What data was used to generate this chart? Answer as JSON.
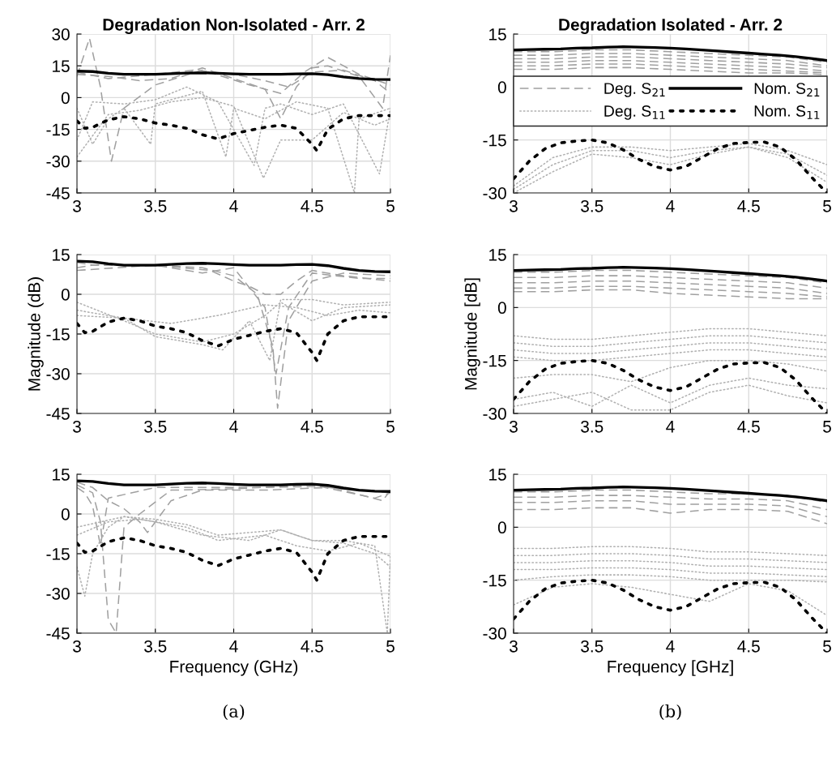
{
  "chart_data": [
    {
      "type": "line",
      "title": "Degradation Non-Isolated - Arr. 2",
      "xlim": [
        3,
        5
      ],
      "xticks": [
        3,
        3.5,
        4,
        4.5,
        5
      ],
      "ylim": [
        -45,
        30
      ],
      "yticks": [
        -45,
        -30,
        -15,
        0,
        15,
        30
      ],
      "grid": true,
      "x": [
        3,
        3.1,
        3.2,
        3.3,
        3.4,
        3.5,
        3.6,
        3.7,
        3.8,
        3.9,
        4.0,
        4.1,
        4.2,
        4.3,
        4.4,
        4.5,
        4.6,
        4.7,
        4.8,
        4.9,
        5
      ],
      "series": [
        {
          "color": "#a0a0a0",
          "line_style": "dashed",
          "x": [
            3,
            3.2,
            3.4,
            3.6,
            3.8,
            4.0,
            4.2,
            4.3,
            4.4,
            4.5,
            4.6,
            4.8,
            4.95,
            5
          ],
          "values": [
            11,
            10,
            8,
            9,
            14,
            9,
            4,
            -10,
            5,
            14,
            15,
            10,
            -5,
            20
          ]
        },
        {
          "color": "#a0a0a0",
          "line_style": "dashed",
          "x": [
            3,
            3.08,
            3.15,
            3.22,
            3.3,
            3.5,
            3.8,
            4.1,
            4.3,
            4.45,
            4.6,
            4.8,
            5
          ],
          "values": [
            10,
            28,
            5,
            -30,
            -5,
            6,
            13,
            6,
            2,
            12,
            19,
            11,
            6
          ]
        },
        {
          "color": "#a0a0a0",
          "line_style": "dashed",
          "x": [
            3,
            3.2,
            3.5,
            3.75,
            4,
            4.2,
            4.35,
            4.5,
            4.7,
            4.9,
            5
          ],
          "values": [
            12,
            9,
            11,
            13,
            11,
            8,
            5,
            12,
            13,
            8,
            2
          ]
        },
        {
          "color": "#b0b0b0",
          "line_style": "dotted",
          "x": [
            3,
            3.1,
            3.2,
            3.3,
            3.47,
            3.5,
            3.8,
            3.95,
            4,
            4.2,
            4.4,
            4.6,
            4.77,
            4.8,
            5
          ],
          "values": [
            -5,
            -22,
            -10,
            -5,
            -22,
            -3,
            3,
            -28,
            -5,
            -10,
            -2,
            -5,
            -45,
            -10,
            -5
          ]
        },
        {
          "color": "#b0b0b0",
          "line_style": "dotted",
          "x": [
            3,
            3.1,
            3.3,
            3.5,
            3.7,
            3.9,
            4.13,
            4.2,
            4.3,
            4.5,
            4.7,
            4.93,
            5
          ],
          "values": [
            -20,
            -2,
            -3,
            -1,
            5,
            -2,
            -32,
            -5,
            -3,
            -8,
            -3,
            -36,
            -5
          ]
        },
        {
          "color": "#b0b0b0",
          "line_style": "dotted",
          "x": [
            3,
            3.2,
            3.4,
            3.6,
            3.8,
            4.0,
            4.19,
            4.3,
            4.5,
            4.7,
            4.9,
            5
          ],
          "values": [
            -28,
            -8,
            -6,
            -2,
            0,
            -4,
            -38,
            -20,
            -20,
            -7,
            -13,
            -10
          ]
        },
        {
          "color": "#000000",
          "line_style": "solid",
          "values": [
            12.5,
            12.3,
            11.5,
            11,
            11,
            11,
            11.3,
            11.6,
            11.7,
            11.5,
            11.2,
            11,
            11,
            11,
            11.2,
            11.3,
            10.8,
            9.8,
            9,
            8.6,
            8.5
          ]
        },
        {
          "color": "#000000",
          "line_style": "dotted",
          "x": [
            3,
            3.05,
            3.1,
            3.2,
            3.3,
            3.4,
            3.5,
            3.6,
            3.7,
            3.8,
            3.9,
            4.0,
            4.1,
            4.2,
            4.3,
            4.4,
            4.5,
            4.53,
            4.6,
            4.7,
            4.8,
            4.9,
            5
          ],
          "values": [
            -11,
            -14.5,
            -14,
            -10.5,
            -9,
            -10,
            -12,
            -13,
            -14.5,
            -17.5,
            -19.5,
            -17,
            -15.5,
            -14,
            -13,
            -14.5,
            -22,
            -25,
            -15,
            -10,
            -8.5,
            -8.5,
            -8.5
          ]
        }
      ]
    },
    {
      "type": "line",
      "title": "Degradation Isolated - Arr. 2",
      "xlim": [
        3,
        5
      ],
      "xticks": [
        3,
        3.5,
        4,
        4.5,
        5
      ],
      "ylim": [
        -30,
        15
      ],
      "yticks": [
        -30,
        -15,
        0,
        15
      ],
      "grid": true,
      "legend": "top",
      "x": [
        3,
        3.1,
        3.2,
        3.3,
        3.4,
        3.5,
        3.6,
        3.7,
        3.8,
        3.9,
        4.0,
        4.1,
        4.2,
        4.3,
        4.4,
        4.5,
        4.6,
        4.7,
        4.8,
        4.9,
        5
      ],
      "series": [
        {
          "name": "Deg. S$_{21}$",
          "color": "#a0a0a0",
          "line_style": "dashed",
          "x": [
            3,
            3.25,
            3.5,
            3.75,
            4,
            4.25,
            4.5,
            4.75,
            5
          ],
          "values": [
            10,
            10,
            10.5,
            10.5,
            10,
            9.5,
            9,
            8.5,
            7
          ]
        },
        {
          "color": "#a0a0a0",
          "line_style": "dashed",
          "x": [
            3,
            3.25,
            3.5,
            3.75,
            4,
            4.25,
            4.5,
            4.75,
            5
          ],
          "values": [
            9,
            9,
            9.5,
            9.5,
            9,
            8.5,
            8,
            7.5,
            6
          ]
        },
        {
          "color": "#a0a0a0",
          "line_style": "dashed",
          "x": [
            3,
            3.25,
            3.5,
            3.75,
            4,
            4.25,
            4.5,
            4.75,
            5
          ],
          "values": [
            8,
            8,
            8.5,
            8.5,
            8,
            7.5,
            7,
            6.5,
            5.5
          ]
        },
        {
          "color": "#a0a0a0",
          "line_style": "dashed",
          "x": [
            3,
            3.25,
            3.5,
            3.75,
            4,
            4.25,
            4.5,
            4.75,
            5
          ],
          "values": [
            7,
            7,
            7.5,
            7.5,
            7,
            6.5,
            6,
            5.5,
            4.5
          ]
        },
        {
          "color": "#a0a0a0",
          "line_style": "dashed",
          "x": [
            3,
            3.25,
            3.5,
            3.75,
            4,
            4.25,
            4.5,
            4.75,
            5
          ],
          "values": [
            6,
            6,
            6.5,
            6.5,
            6,
            5.5,
            5,
            4.5,
            4
          ]
        },
        {
          "color": "#a0a0a0",
          "line_style": "dashed",
          "x": [
            3,
            3.25,
            3.5,
            3.75,
            4,
            4.25,
            4.5,
            4.75,
            5
          ],
          "values": [
            5,
            5,
            5.5,
            5.5,
            5,
            4.5,
            4,
            4,
            3.5
          ]
        },
        {
          "name": "Deg. S$_{11}$",
          "color": "#b0b0b0",
          "line_style": "dotted",
          "x": [
            3,
            3.25,
            3.5,
            3.75,
            4,
            4.25,
            4.5,
            4.75,
            5
          ],
          "values": [
            -28,
            -20,
            -17,
            -17,
            -18,
            -17,
            -16,
            -18,
            -22
          ]
        },
        {
          "color": "#b0b0b0",
          "line_style": "dotted",
          "x": [
            3,
            3.25,
            3.5,
            3.75,
            4,
            4.25,
            4.5,
            4.75,
            5
          ],
          "values": [
            -29,
            -22,
            -18,
            -18,
            -20,
            -18,
            -17,
            -19,
            -25
          ]
        },
        {
          "color": "#b0b0b0",
          "line_style": "dotted",
          "x": [
            3,
            3.25,
            3.5,
            3.75,
            4,
            4.25,
            4.5,
            4.75,
            5
          ],
          "values": [
            -30,
            -24,
            -19,
            -20,
            -22,
            -19,
            -17,
            -20,
            -27
          ]
        },
        {
          "name": "Nom. S$_{21}$",
          "color": "#000000",
          "line_style": "solid",
          "values": [
            10.5,
            10.6,
            10.7,
            10.8,
            11,
            11.1,
            11.3,
            11.4,
            11.3,
            11.2,
            11,
            10.8,
            10.5,
            10.2,
            9.9,
            9.6,
            9.3,
            9,
            8.6,
            8.1,
            7.5
          ]
        },
        {
          "name": "Nom. S$_{11}$",
          "color": "#000000",
          "line_style": "dotted",
          "values": [
            -26,
            -21,
            -17.5,
            -15.8,
            -15.3,
            -15,
            -15.8,
            -17.8,
            -20.5,
            -22.5,
            -23.5,
            -22.5,
            -20,
            -17.5,
            -16,
            -15.7,
            -15.6,
            -17,
            -20.5,
            -25.5,
            -30
          ]
        }
      ]
    },
    {
      "type": "line",
      "ylabel": "Magnitude (dB)",
      "xlim": [
        3,
        5
      ],
      "xticks": [
        3,
        3.5,
        4,
        4.5,
        5
      ],
      "ylim": [
        -45,
        15
      ],
      "yticks": [
        -45,
        -30,
        -15,
        0,
        15
      ],
      "grid": true,
      "x": [
        3,
        3.1,
        3.2,
        3.3,
        3.4,
        3.5,
        3.6,
        3.7,
        3.8,
        3.9,
        4.0,
        4.1,
        4.2,
        4.3,
        4.4,
        4.5,
        4.6,
        4.7,
        4.8,
        4.9,
        5
      ],
      "series": [
        {
          "color": "#a0a0a0",
          "line_style": "dashed",
          "x": [
            3,
            3.1,
            3.5,
            3.8,
            4.0,
            4.15,
            4.25,
            4.28,
            4.35,
            4.5,
            4.7,
            5
          ],
          "values": [
            12,
            11,
            11,
            10,
            7,
            0,
            -20,
            -43,
            -10,
            5,
            8,
            7
          ]
        },
        {
          "color": "#a0a0a0",
          "line_style": "dashed",
          "x": [
            3,
            3.1,
            3.5,
            3.85,
            4.0,
            4.1,
            4.2,
            4.3,
            4.4,
            4.5,
            4.7,
            5
          ],
          "values": [
            10,
            11,
            11,
            9,
            5,
            3,
            0,
            0,
            5,
            9,
            7,
            5
          ]
        },
        {
          "color": "#a0a0a0",
          "line_style": "dashed",
          "x": [
            3,
            3.5,
            3.8,
            4.0,
            4.2,
            4.27,
            4.35,
            4.5,
            4.8,
            5
          ],
          "values": [
            9,
            11,
            8,
            10,
            -5,
            -30,
            -5,
            8,
            6,
            6
          ]
        },
        {
          "color": "#b0b0b0",
          "line_style": "dotted",
          "x": [
            3,
            3.3,
            3.5,
            3.8,
            4.0,
            4.2,
            4.3,
            4.5,
            4.7,
            5
          ],
          "values": [
            -3,
            -10,
            -15,
            -18,
            -15,
            -8,
            -3,
            -10,
            -5,
            -4
          ]
        },
        {
          "color": "#b0b0b0",
          "line_style": "dotted",
          "x": [
            3,
            3.3,
            3.5,
            3.8,
            3.93,
            4.1,
            4.23,
            4.3,
            4.5,
            4.7,
            5
          ],
          "values": [
            -6,
            -9,
            -16,
            -19,
            -21,
            -10,
            -25,
            -2,
            -2,
            -4,
            -3
          ]
        },
        {
          "color": "#b0b0b0",
          "line_style": "dotted",
          "x": [
            3,
            3.3,
            3.6,
            3.9,
            4.2,
            4.4,
            4.6,
            4.8,
            5
          ],
          "values": [
            -8,
            -9,
            -11,
            -8,
            -4,
            -5,
            -8,
            -6,
            -7
          ]
        },
        {
          "color": "#000000",
          "line_style": "solid",
          "values": [
            12.5,
            12.3,
            11.5,
            11,
            11,
            11,
            11.3,
            11.6,
            11.7,
            11.5,
            11.2,
            11,
            11,
            11,
            11.2,
            11.3,
            10.8,
            9.8,
            9,
            8.6,
            8.5
          ]
        },
        {
          "color": "#000000",
          "line_style": "dotted",
          "x": [
            3,
            3.05,
            3.1,
            3.2,
            3.3,
            3.4,
            3.5,
            3.6,
            3.7,
            3.8,
            3.9,
            4.0,
            4.1,
            4.2,
            4.3,
            4.4,
            4.5,
            4.53,
            4.6,
            4.7,
            4.8,
            4.9,
            5
          ],
          "values": [
            -11,
            -14.5,
            -14,
            -10.5,
            -9,
            -10,
            -12,
            -13,
            -14.5,
            -17.5,
            -19.5,
            -17,
            -15.5,
            -14,
            -13,
            -14.5,
            -22,
            -25,
            -15,
            -10,
            -8.5,
            -8.5,
            -8.5
          ]
        }
      ]
    },
    {
      "type": "line",
      "ylabel": "Magnitude [dB]",
      "xlim": [
        3,
        5
      ],
      "xticks": [
        3,
        3.5,
        4,
        4.5,
        5
      ],
      "ylim": [
        -30,
        15
      ],
      "yticks": [
        -30,
        -15,
        0,
        15
      ],
      "grid": true,
      "x": [
        3,
        3.1,
        3.2,
        3.3,
        3.4,
        3.5,
        3.6,
        3.7,
        3.8,
        3.9,
        4.0,
        4.1,
        4.2,
        4.3,
        4.4,
        4.5,
        4.6,
        4.7,
        4.8,
        4.9,
        5
      ],
      "series": [
        {
          "color": "#a0a0a0",
          "line_style": "dashed",
          "x": [
            3,
            3.25,
            3.5,
            3.75,
            4,
            4.25,
            4.5,
            4.75,
            5
          ],
          "values": [
            10,
            10,
            10.5,
            10.5,
            10,
            9.5,
            9,
            8.5,
            7
          ]
        },
        {
          "color": "#a0a0a0",
          "line_style": "dashed",
          "x": [
            3,
            3.25,
            3.5,
            3.75,
            4,
            4.25,
            4.5,
            4.75,
            5
          ],
          "values": [
            8.5,
            8.5,
            9,
            9,
            8.5,
            8,
            7.5,
            7,
            5.5
          ]
        },
        {
          "color": "#a0a0a0",
          "line_style": "dashed",
          "x": [
            3,
            3.25,
            3.5,
            3.75,
            4,
            4.25,
            4.5,
            4.75,
            5
          ],
          "values": [
            7,
            7,
            7.5,
            7.5,
            7,
            6.5,
            6,
            5.5,
            4
          ]
        },
        {
          "color": "#a0a0a0",
          "line_style": "dashed",
          "x": [
            3,
            3.25,
            3.5,
            3.75,
            4,
            4.25,
            4.5,
            4.75,
            5
          ],
          "values": [
            5.5,
            5.5,
            6,
            6,
            5.5,
            5,
            4.5,
            4,
            3
          ]
        },
        {
          "color": "#a0a0a0",
          "line_style": "dashed",
          "x": [
            3,
            3.25,
            3.5,
            3.75,
            4,
            4.25,
            4.5,
            4.75,
            5
          ],
          "values": [
            4.5,
            4.5,
            5,
            5,
            4,
            3.5,
            3,
            2.5,
            2.5
          ]
        },
        {
          "color": "#b0b0b0",
          "line_style": "dotted",
          "x": [
            3,
            3.25,
            3.5,
            3.75,
            4,
            4.25,
            4.5,
            4.75,
            5
          ],
          "values": [
            -8,
            -9,
            -9,
            -8,
            -7,
            -6,
            -6,
            -7,
            -8
          ]
        },
        {
          "color": "#b0b0b0",
          "line_style": "dotted",
          "x": [
            3,
            3.25,
            3.5,
            3.75,
            4,
            4.25,
            4.5,
            4.75,
            5
          ],
          "values": [
            -10,
            -11,
            -11,
            -10,
            -9,
            -8,
            -8,
            -9,
            -10
          ]
        },
        {
          "color": "#b0b0b0",
          "line_style": "dotted",
          "x": [
            3,
            3.25,
            3.5,
            3.75,
            4,
            4.25,
            4.5,
            4.75,
            5
          ],
          "values": [
            -12,
            -13,
            -13,
            -12,
            -11,
            -10,
            -10,
            -11,
            -12
          ]
        },
        {
          "color": "#b0b0b0",
          "line_style": "dotted",
          "x": [
            3,
            3.25,
            3.5,
            3.75,
            4,
            4.25,
            4.5,
            4.75,
            5
          ],
          "values": [
            -14,
            -15,
            -15,
            -14,
            -13,
            -12,
            -12,
            -13,
            -14
          ]
        },
        {
          "color": "#b0b0b0",
          "line_style": "dotted",
          "x": [
            3,
            3.25,
            3.5,
            3.75,
            4,
            4.25,
            4.5,
            4.75,
            5
          ],
          "values": [
            -20,
            -19,
            -19,
            -21,
            -17,
            -15,
            -15,
            -16,
            -18
          ]
        },
        {
          "color": "#b0b0b0",
          "line_style": "dotted",
          "x": [
            3,
            3.25,
            3.5,
            3.75,
            4,
            4.25,
            4.5,
            4.75,
            5
          ],
          "values": [
            -26,
            -24,
            -28,
            -22,
            -27,
            -22,
            -20,
            -22,
            -23
          ]
        },
        {
          "color": "#b0b0b0",
          "line_style": "dotted",
          "x": [
            3,
            3.25,
            3.5,
            3.75,
            4,
            4.25,
            4.5,
            4.75,
            5
          ],
          "values": [
            -28,
            -26,
            -24,
            -29,
            -29,
            -24,
            -22,
            -25,
            -27
          ]
        },
        {
          "color": "#000000",
          "line_style": "solid",
          "values": [
            10.5,
            10.6,
            10.7,
            10.8,
            11,
            11.1,
            11.3,
            11.4,
            11.3,
            11.2,
            11,
            10.8,
            10.5,
            10.2,
            9.9,
            9.6,
            9.3,
            9,
            8.6,
            8.1,
            7.5
          ]
        },
        {
          "color": "#000000",
          "line_style": "dotted",
          "values": [
            -26,
            -21,
            -17.5,
            -15.8,
            -15.3,
            -15,
            -15.8,
            -17.8,
            -20.5,
            -22.5,
            -23.5,
            -22.5,
            -20,
            -17.5,
            -16,
            -15.7,
            -15.6,
            -17,
            -20.5,
            -25.5,
            -30
          ]
        }
      ]
    },
    {
      "type": "line",
      "xlabel": "Frequency (GHz)",
      "annotations": [
        "(a)"
      ],
      "xlim": [
        3,
        5
      ],
      "xticks": [
        3,
        3.5,
        4,
        4.5,
        5
      ],
      "ylim": [
        -45,
        15
      ],
      "yticks": [
        -45,
        -30,
        -15,
        0,
        15
      ],
      "grid": true,
      "x": [
        3,
        3.1,
        3.2,
        3.3,
        3.4,
        3.5,
        3.6,
        3.7,
        3.8,
        3.9,
        4.0,
        4.1,
        4.2,
        4.3,
        4.4,
        4.5,
        4.6,
        4.7,
        4.8,
        4.9,
        5
      ],
      "series": [
        {
          "color": "#a0a0a0",
          "line_style": "dashed",
          "x": [
            3,
            3.1,
            3.15,
            3.2,
            3.25,
            3.3,
            3.4,
            3.6,
            4.0,
            4.5,
            4.9,
            5
          ],
          "values": [
            11,
            8,
            -3,
            -40,
            -45,
            -5,
            0,
            9,
            9.5,
            11,
            6,
            8
          ]
        },
        {
          "color": "#a0a0a0",
          "line_style": "dashed",
          "x": [
            3,
            3.1,
            3.2,
            3.3,
            3.4,
            3.45,
            3.6,
            3.8,
            4.2,
            4.6,
            4.8,
            5
          ],
          "values": [
            12,
            10,
            5,
            2,
            -3,
            -7,
            5,
            9,
            9,
            10,
            9,
            8
          ]
        },
        {
          "color": "#a0a0a0",
          "line_style": "dashed",
          "x": [
            3,
            3.05,
            3.1,
            3.15,
            3.2,
            3.5,
            3.8,
            4.2,
            4.6,
            4.95,
            5
          ],
          "values": [
            10,
            8,
            3,
            -12,
            6,
            10,
            10,
            10,
            10.5,
            5,
            9
          ]
        },
        {
          "color": "#b0b0b0",
          "line_style": "dotted",
          "x": [
            3,
            3.05,
            3.1,
            3.2,
            3.3,
            3.5,
            3.7,
            3.9,
            4.3,
            4.5,
            4.7,
            4.9,
            4.98,
            5
          ],
          "values": [
            -20,
            -31,
            -15,
            -5,
            -1,
            -2,
            -4,
            -8,
            -6,
            -10,
            -10,
            -12,
            -45,
            -15
          ]
        },
        {
          "color": "#b0b0b0",
          "line_style": "dotted",
          "x": [
            3,
            3.3,
            3.5,
            3.8,
            4.1,
            4.3,
            4.5,
            4.7,
            4.9,
            5
          ],
          "values": [
            -5,
            -1,
            -3,
            -8,
            -10,
            -6,
            -10,
            -11,
            -15,
            -20
          ]
        },
        {
          "color": "#b0b0b0",
          "line_style": "dotted",
          "x": [
            3,
            3.2,
            3.4,
            3.7,
            3.9,
            4.2,
            4.4,
            4.6,
            4.8,
            5
          ],
          "values": [
            -8,
            -3,
            -2,
            -5,
            -10,
            -8,
            -12,
            -14,
            -11,
            -16
          ]
        },
        {
          "color": "#000000",
          "line_style": "solid",
          "values": [
            12.5,
            12.3,
            11.5,
            11,
            11,
            11,
            11.3,
            11.6,
            11.7,
            11.5,
            11.2,
            11,
            11,
            11,
            11.2,
            11.3,
            10.8,
            9.8,
            9,
            8.6,
            8.5
          ]
        },
        {
          "color": "#000000",
          "line_style": "dotted",
          "x": [
            3,
            3.05,
            3.1,
            3.2,
            3.3,
            3.4,
            3.5,
            3.6,
            3.7,
            3.8,
            3.9,
            4.0,
            4.1,
            4.2,
            4.3,
            4.4,
            4.5,
            4.53,
            4.6,
            4.7,
            4.8,
            4.9,
            5
          ],
          "values": [
            -11,
            -14.5,
            -14,
            -10.5,
            -9,
            -10,
            -12,
            -13,
            -14.5,
            -17.5,
            -19.5,
            -17,
            -15.5,
            -14,
            -13,
            -14.5,
            -22,
            -25,
            -15,
            -10,
            -8.5,
            -8.5,
            -8.5
          ]
        }
      ]
    },
    {
      "type": "line",
      "xlabel": "Frequency [GHz]",
      "annotations": [
        "(b)"
      ],
      "xlim": [
        3,
        5
      ],
      "xticks": [
        3,
        3.5,
        4,
        4.5,
        5
      ],
      "ylim": [
        -30,
        15
      ],
      "yticks": [
        -30,
        -15,
        0,
        15
      ],
      "grid": true,
      "x": [
        3,
        3.1,
        3.2,
        3.3,
        3.4,
        3.5,
        3.6,
        3.7,
        3.8,
        3.9,
        4.0,
        4.1,
        4.2,
        4.3,
        4.4,
        4.5,
        4.6,
        4.7,
        4.8,
        4.9,
        5
      ],
      "series": [
        {
          "color": "#a0a0a0",
          "line_style": "dashed",
          "x": [
            3,
            3.25,
            3.5,
            3.75,
            4,
            4.25,
            4.5,
            4.75,
            5
          ],
          "values": [
            10,
            10,
            10.5,
            10.5,
            10,
            9.5,
            9.5,
            9,
            7
          ]
        },
        {
          "color": "#a0a0a0",
          "line_style": "dashed",
          "x": [
            3,
            3.25,
            3.5,
            3.75,
            4,
            4.25,
            4.5,
            4.75,
            5
          ],
          "values": [
            8.5,
            8.5,
            9,
            9,
            8.5,
            8,
            8,
            7.5,
            5
          ]
        },
        {
          "color": "#a0a0a0",
          "line_style": "dashed",
          "x": [
            3,
            3.25,
            3.5,
            3.75,
            4,
            4.25,
            4.5,
            4.75,
            5
          ],
          "values": [
            7,
            7,
            7.5,
            7.5,
            6.5,
            6.5,
            6.5,
            6,
            3
          ]
        },
        {
          "color": "#a0a0a0",
          "line_style": "dashed",
          "x": [
            3,
            3.25,
            3.5,
            3.75,
            4,
            4.25,
            4.5,
            4.75,
            5
          ],
          "values": [
            5,
            5,
            5.5,
            5.5,
            4,
            5,
            5,
            4.5,
            1
          ]
        },
        {
          "color": "#b0b0b0",
          "line_style": "dotted",
          "x": [
            3,
            3.25,
            3.5,
            3.75,
            4,
            4.25,
            4.5,
            4.75,
            5
          ],
          "values": [
            -6,
            -6,
            -5.5,
            -5.5,
            -6,
            -7,
            -7,
            -7.5,
            -8
          ]
        },
        {
          "color": "#b0b0b0",
          "line_style": "dotted",
          "x": [
            3,
            3.25,
            3.5,
            3.75,
            4,
            4.25,
            4.5,
            4.75,
            5
          ],
          "values": [
            -8,
            -8,
            -7.5,
            -7.5,
            -8,
            -9,
            -9,
            -9.5,
            -10
          ]
        },
        {
          "color": "#b0b0b0",
          "line_style": "dotted",
          "x": [
            3,
            3.25,
            3.5,
            3.75,
            4,
            4.25,
            4.5,
            4.75,
            5
          ],
          "values": [
            -10,
            -10,
            -9.5,
            -9.5,
            -10,
            -11,
            -11,
            -11.5,
            -12
          ]
        },
        {
          "color": "#b0b0b0",
          "line_style": "dotted",
          "x": [
            3,
            3.25,
            3.5,
            3.75,
            4,
            4.25,
            4.5,
            4.75,
            5
          ],
          "values": [
            -12,
            -12,
            -11.5,
            -11.5,
            -12,
            -13,
            -13,
            -13.5,
            -14
          ]
        },
        {
          "color": "#b0b0b0",
          "line_style": "dotted",
          "x": [
            3,
            3.25,
            3.5,
            3.75,
            4,
            4.25,
            4.5,
            4.75,
            5
          ],
          "values": [
            -15,
            -14,
            -13.5,
            -13.5,
            -14,
            -15,
            -15,
            -15,
            -15.5
          ]
        },
        {
          "color": "#b0b0b0",
          "line_style": "dotted",
          "x": [
            3,
            3.25,
            3.5,
            3.75,
            4,
            4.25,
            4.5,
            4.75,
            5
          ],
          "values": [
            -22,
            -17,
            -16,
            -17,
            -19,
            -21,
            -16,
            -18,
            -25
          ]
        },
        {
          "color": "#000000",
          "line_style": "solid",
          "values": [
            10.5,
            10.6,
            10.7,
            10.8,
            11,
            11.1,
            11.3,
            11.4,
            11.3,
            11.2,
            11,
            10.8,
            10.5,
            10.2,
            9.9,
            9.6,
            9.3,
            9,
            8.6,
            8.1,
            7.5
          ]
        },
        {
          "color": "#000000",
          "line_style": "dotted",
          "values": [
            -26,
            -21,
            -17.5,
            -15.8,
            -15.3,
            -15,
            -15.8,
            -17.8,
            -20.5,
            -22.5,
            -23.5,
            -22.5,
            -20,
            -17.5,
            -16,
            -15.7,
            -15.6,
            -17,
            -20.5,
            -25.5,
            -30
          ]
        }
      ]
    }
  ]
}
